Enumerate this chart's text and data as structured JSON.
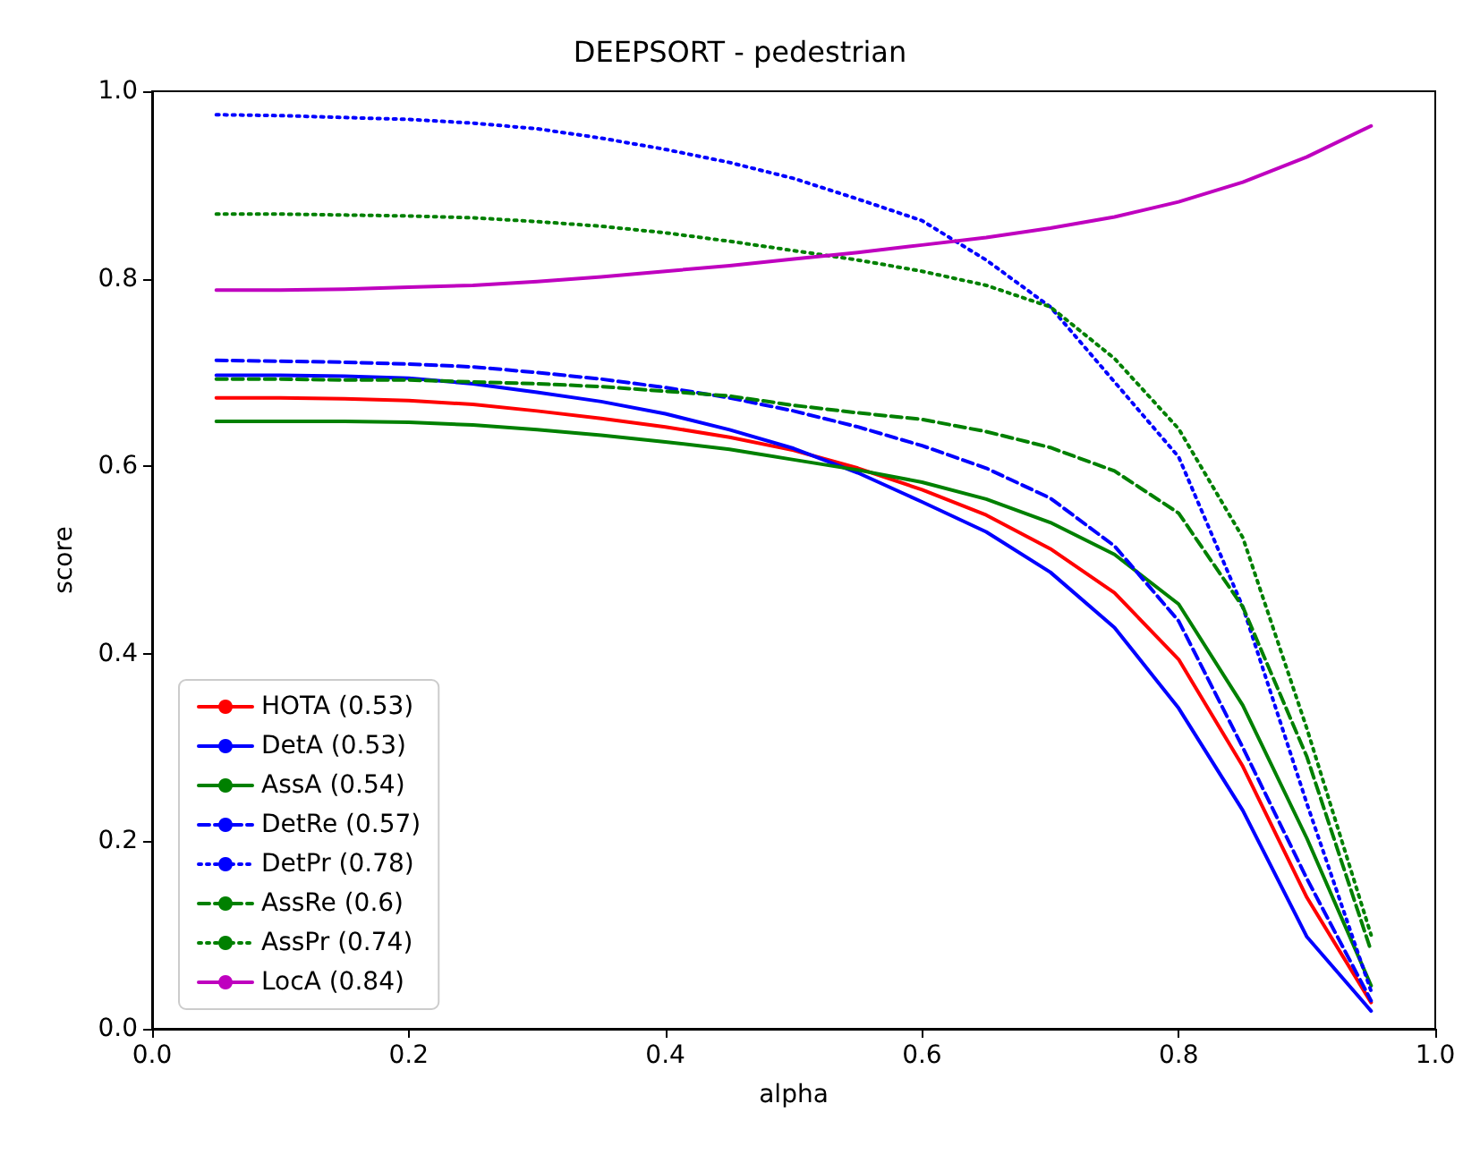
{
  "chart_data": {
    "type": "line",
    "title": "DEEPSORT - pedestrian",
    "xlabel": "alpha",
    "ylabel": "score",
    "x": [
      0.05,
      0.1,
      0.15,
      0.2,
      0.25,
      0.3,
      0.35,
      0.4,
      0.45,
      0.5,
      0.55,
      0.6,
      0.65,
      0.7,
      0.75,
      0.8,
      0.85,
      0.9,
      0.95
    ],
    "series": [
      {
        "name": "HOTA (0.53)",
        "color": "#ff0000",
        "line_style": "solid",
        "values": [
          0.673,
          0.673,
          0.672,
          0.67,
          0.666,
          0.659,
          0.651,
          0.642,
          0.631,
          0.617,
          0.598,
          0.575,
          0.548,
          0.512,
          0.465,
          0.394,
          0.28,
          0.14,
          0.028
        ]
      },
      {
        "name": "DetA (0.53)",
        "color": "#0000ff",
        "line_style": "solid",
        "values": [
          0.697,
          0.697,
          0.696,
          0.694,
          0.688,
          0.679,
          0.669,
          0.656,
          0.639,
          0.619,
          0.593,
          0.562,
          0.53,
          0.487,
          0.428,
          0.342,
          0.233,
          0.098,
          0.019
        ]
      },
      {
        "name": "AssA (0.54)",
        "color": "#008000",
        "line_style": "solid",
        "values": [
          0.648,
          0.648,
          0.648,
          0.647,
          0.644,
          0.639,
          0.633,
          0.626,
          0.618,
          0.607,
          0.596,
          0.583,
          0.565,
          0.54,
          0.506,
          0.453,
          0.345,
          0.203,
          0.046
        ]
      },
      {
        "name": "DetRe (0.57)",
        "color": "#0000ff",
        "line_style": "dashed",
        "values": [
          0.713,
          0.712,
          0.711,
          0.709,
          0.706,
          0.7,
          0.693,
          0.684,
          0.673,
          0.659,
          0.642,
          0.622,
          0.598,
          0.566,
          0.515,
          0.435,
          0.3,
          0.16,
          0.03
        ]
      },
      {
        "name": "DetPr (0.78)",
        "color": "#0000ff",
        "line_style": "dotted",
        "values": [
          0.975,
          0.974,
          0.972,
          0.97,
          0.966,
          0.96,
          0.95,
          0.938,
          0.924,
          0.907,
          0.885,
          0.862,
          0.82,
          0.77,
          0.69,
          0.61,
          0.45,
          0.24,
          0.04
        ]
      },
      {
        "name": "AssRe (0.6)",
        "color": "#008000",
        "line_style": "dashed",
        "values": [
          0.693,
          0.693,
          0.692,
          0.692,
          0.69,
          0.688,
          0.685,
          0.68,
          0.675,
          0.665,
          0.657,
          0.65,
          0.637,
          0.62,
          0.595,
          0.55,
          0.45,
          0.29,
          0.083
        ]
      },
      {
        "name": "AssPr (0.74)",
        "color": "#008000",
        "line_style": "dotted",
        "values": [
          0.869,
          0.869,
          0.868,
          0.867,
          0.865,
          0.861,
          0.856,
          0.849,
          0.84,
          0.83,
          0.82,
          0.808,
          0.793,
          0.77,
          0.715,
          0.64,
          0.524,
          0.32,
          0.1
        ]
      },
      {
        "name": "LocA (0.84)",
        "color": "#bf00bf",
        "line_style": "solid",
        "values": [
          0.788,
          0.788,
          0.789,
          0.791,
          0.793,
          0.797,
          0.802,
          0.808,
          0.814,
          0.821,
          0.828,
          0.836,
          0.844,
          0.854,
          0.866,
          0.882,
          0.903,
          0.93,
          0.963
        ]
      }
    ],
    "xlim": [
      0,
      1
    ],
    "ylim": [
      0,
      1
    ],
    "xticks": [
      {
        "value": 0,
        "label": "0.0"
      },
      {
        "value": 0.2,
        "label": "0.2"
      },
      {
        "value": 0.4,
        "label": "0.4"
      },
      {
        "value": 0.6,
        "label": "0.6"
      },
      {
        "value": 0.8,
        "label": "0.8"
      },
      {
        "value": 1,
        "label": "1.0"
      }
    ],
    "yticks": [
      {
        "value": 0,
        "label": "0.0"
      },
      {
        "value": 0.2,
        "label": "0.2"
      },
      {
        "value": 0.4,
        "label": "0.4"
      },
      {
        "value": 0.6,
        "label": "0.6"
      },
      {
        "value": 0.8,
        "label": "0.8"
      },
      {
        "value": 1,
        "label": "1.0"
      }
    ],
    "grid": false,
    "legend": "bottom left",
    "marker": "none"
  }
}
